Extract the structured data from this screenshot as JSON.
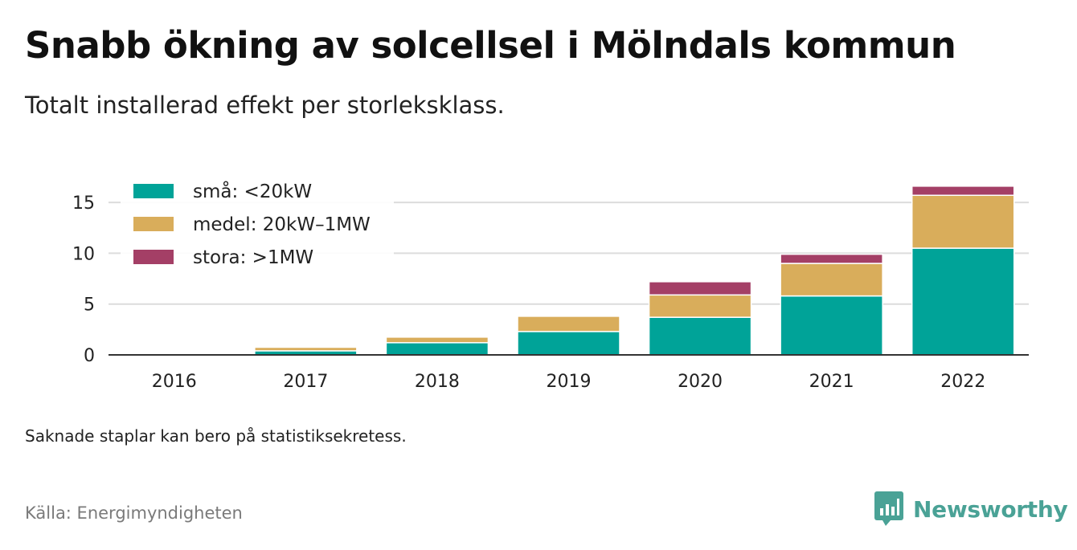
{
  "header": {
    "title": "Snabb ökning av solcellsel i Mölndals kommun",
    "subtitle": "Totalt installerad effekt per storleksklass."
  },
  "footnote": "Saknade staplar kan bero på statistiksekretess.",
  "source": "Källa: Energimyndigheten",
  "brand": {
    "name": "Newsworthy",
    "icon": "newsworthy-logo-icon",
    "color": "#4aa296"
  },
  "chart_data": {
    "type": "bar",
    "stacked": true,
    "categories": [
      "2016",
      "2017",
      "2018",
      "2019",
      "2020",
      "2021",
      "2022"
    ],
    "series": [
      {
        "name": "små: <20kW",
        "color": "#00a398",
        "values": [
          0.1,
          0.4,
          1.2,
          2.3,
          3.7,
          5.8,
          10.5
        ]
      },
      {
        "name": "medel: 20kW–1MW",
        "color": "#d9ad5b",
        "values": [
          0.05,
          0.35,
          0.55,
          1.5,
          2.2,
          3.2,
          5.2
        ]
      },
      {
        "name": "stora: >1MW",
        "color": "#a43f66",
        "values": [
          0,
          0,
          0,
          0,
          1.3,
          0.9,
          0.9
        ]
      }
    ],
    "yticks": [
      0,
      5,
      10,
      15
    ],
    "ylim": [
      0,
      17
    ],
    "grid": true,
    "legend": "top-left"
  }
}
